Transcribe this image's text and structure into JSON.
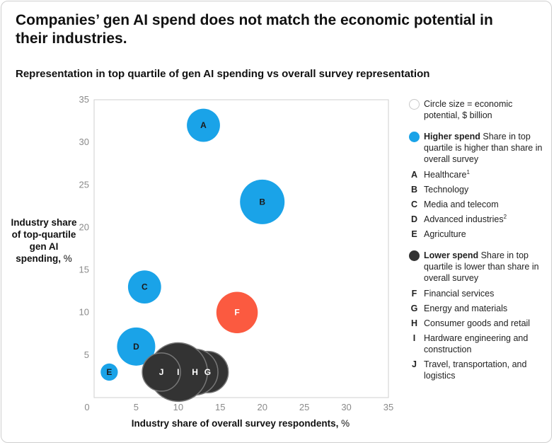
{
  "title": "Companies’ gen AI spend does not match the economic potential in their industries.",
  "subtitle": "Representation in top quartile of gen AI spending vs overall survey representation",
  "ylabel_bold": "Industry share of top-quartile gen AI spending,",
  "ylabel_unit": "%",
  "xlabel_bold": "Industry share of overall survey respondents,",
  "xlabel_unit": "%",
  "legend": {
    "size_note": "Circle size = economic potential, $ billion",
    "higher_title": "Higher spend",
    "higher_desc": "Share in top quartile is higher than share in overall survey",
    "lower_title": "Lower spend",
    "lower_desc": "Share in top quartile is lower than share in overall survey",
    "higher_items": [
      {
        "letter": "A",
        "label": "Healthcare",
        "sup": "1"
      },
      {
        "letter": "B",
        "label": "Technology",
        "sup": ""
      },
      {
        "letter": "C",
        "label": "Media and telecom",
        "sup": ""
      },
      {
        "letter": "D",
        "label": "Advanced industries",
        "sup": "2"
      },
      {
        "letter": "E",
        "label": "Agriculture",
        "sup": ""
      }
    ],
    "lower_items": [
      {
        "letter": "F",
        "label": "Financial services"
      },
      {
        "letter": "G",
        "label": "Energy and materials"
      },
      {
        "letter": "H",
        "label": "Consumer goods and retail"
      },
      {
        "letter": "I",
        "label": "Hardware engineering and construction"
      },
      {
        "letter": "J",
        "label": "Travel, transportation, and logistics"
      }
    ]
  },
  "colors": {
    "higher": "#1aa3e8",
    "lower": "#333333",
    "highlight": "#fb5a40",
    "axis": "#cfcfcf",
    "tick": "#8a8a8a"
  },
  "chart_data": {
    "type": "scatter",
    "xlabel": "Industry share of overall survey respondents, %",
    "ylabel": "Industry share of top-quartile gen AI spending, %",
    "xlim": [
      0,
      35
    ],
    "ylim": [
      0,
      35
    ],
    "xticks": [
      0,
      5,
      10,
      15,
      20,
      25,
      30,
      35
    ],
    "yticks": [
      5,
      10,
      15,
      20,
      25,
      30,
      35
    ],
    "points": [
      {
        "id": "A",
        "x": 13,
        "y": 32,
        "relative_size": 0.52,
        "group": "higher"
      },
      {
        "id": "B",
        "x": 20,
        "y": 23,
        "relative_size": 0.7,
        "group": "higher"
      },
      {
        "id": "C",
        "x": 6,
        "y": 13,
        "relative_size": 0.52,
        "group": "higher"
      },
      {
        "id": "D",
        "x": 5,
        "y": 6,
        "relative_size": 0.6,
        "group": "higher"
      },
      {
        "id": "E",
        "x": 1.8,
        "y": 3,
        "relative_size": 0.27,
        "group": "higher"
      },
      {
        "id": "F",
        "x": 17,
        "y": 10,
        "relative_size": 0.65,
        "group": "lower",
        "highlight": true
      },
      {
        "id": "G",
        "x": 13.5,
        "y": 3,
        "relative_size": 0.65,
        "group": "lower"
      },
      {
        "id": "H",
        "x": 12,
        "y": 3,
        "relative_size": 0.72,
        "group": "lower"
      },
      {
        "id": "I",
        "x": 10,
        "y": 3,
        "relative_size": 0.92,
        "group": "lower"
      },
      {
        "id": "J",
        "x": 8,
        "y": 3,
        "relative_size": 0.6,
        "group": "lower"
      }
    ]
  }
}
